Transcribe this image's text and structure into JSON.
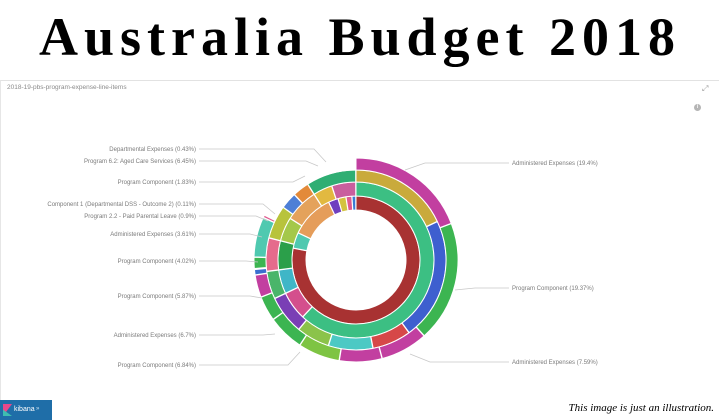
{
  "banner": {
    "title": "Australia Budget 2018"
  },
  "panel": {
    "title": "2018-19-pbs-program-expense-line-items",
    "expand_icon": "expand-icon",
    "info_icon": "info-icon"
  },
  "chart_data": {
    "type": "sunburst",
    "title": "2018-19-pbs-program-expense-line-items",
    "labels": [
      {
        "side": "left",
        "text": "Departmental Expenses (0.43%)"
      },
      {
        "side": "left",
        "text": "Program 6.2: Aged Care Services (6.45%)"
      },
      {
        "side": "left",
        "text": "Program Component (1.83%)"
      },
      {
        "side": "left",
        "text": "Component 1 (Departmental DSS - Outcome 2) (0.11%)"
      },
      {
        "side": "left",
        "text": "Program 2.2 - Paid Parental Leave (0.9%)"
      },
      {
        "side": "left",
        "text": "Administered Expenses (3.61%)"
      },
      {
        "side": "left",
        "text": "Program Component (4.02%)"
      },
      {
        "side": "left",
        "text": "Program Component (5.87%)"
      },
      {
        "side": "left",
        "text": "Administered Expenses (6.7%)"
      },
      {
        "side": "left",
        "text": "Program Component (6.84%)"
      },
      {
        "side": "right",
        "text": "Administered Expenses (19.4%)"
      },
      {
        "side": "right",
        "text": "Program Component (19.37%)"
      },
      {
        "side": "right",
        "text": "Administered Expenses (7.59%)"
      }
    ],
    "rings": [
      {
        "name": "inner",
        "segments": [
          {
            "pct": 78,
            "color": "#a83232"
          },
          {
            "pct": 4,
            "color": "#4fc9b0"
          },
          {
            "pct": 11,
            "color": "#e59d5a"
          },
          {
            "pct": 2.5,
            "color": "#6f3fbf"
          },
          {
            "pct": 2,
            "color": "#d4c23f"
          },
          {
            "pct": 1.5,
            "color": "#e05a8f"
          },
          {
            "pct": 1,
            "color": "#3a7bd5"
          }
        ]
      },
      {
        "name": "ring2",
        "segments": [
          {
            "pct": 62,
            "color": "#3cbf83"
          },
          {
            "pct": 6,
            "color": "#d44f8d"
          },
          {
            "pct": 5,
            "color": "#3fb6c7"
          },
          {
            "pct": 6,
            "color": "#2b9f4a"
          },
          {
            "pct": 5,
            "color": "#a4c84a"
          },
          {
            "pct": 7,
            "color": "#e4a25b"
          },
          {
            "pct": 4,
            "color": "#e2b940"
          },
          {
            "pct": 5,
            "color": "#c95f9e"
          }
        ]
      },
      {
        "name": "ring3",
        "segments": [
          {
            "pct": 18,
            "color": "#c9aa3c"
          },
          {
            "pct": 22,
            "color": "#3e5fcf"
          },
          {
            "pct": 7,
            "color": "#d64848"
          },
          {
            "pct": 8,
            "color": "#4cc9c4"
          },
          {
            "pct": 6,
            "color": "#8bc34a"
          },
          {
            "pct": 7,
            "color": "#7a3fb5"
          },
          {
            "pct": 5,
            "color": "#4ab56a"
          },
          {
            "pct": 6,
            "color": "#e56b8c"
          },
          {
            "pct": 6,
            "color": "#b8c33c"
          },
          {
            "pct": 3,
            "color": "#4d7fd6"
          },
          {
            "pct": 3,
            "color": "#e38a3a"
          },
          {
            "pct": 9,
            "color": "#2fae73"
          }
        ]
      },
      {
        "name": "outer",
        "segments": [
          {
            "pct": 19.4,
            "color": "#c23fa0"
          },
          {
            "pct": 19.37,
            "color": "#3cb551"
          },
          {
            "pct": 7.59,
            "color": "#c23fa0"
          },
          {
            "pct": 6.84,
            "color": "#c23fa0"
          },
          {
            "pct": 6.7,
            "color": "#7ec443"
          },
          {
            "pct": 5.87,
            "color": "#3cb551"
          },
          {
            "pct": 4.02,
            "color": "#3cb551"
          },
          {
            "pct": 3.61,
            "color": "#c23fa0"
          },
          {
            "pct": 0.9,
            "color": "#3a6fcf"
          },
          {
            "pct": 0.11,
            "color": "#d4c23f"
          },
          {
            "pct": 1.83,
            "color": "#3cb551"
          },
          {
            "pct": 6.45,
            "color": "#4fc9b0"
          },
          {
            "pct": 0.43,
            "color": "#e05a8f"
          },
          {
            "pct": 17.88,
            "color": "#ffffff"
          }
        ]
      }
    ]
  },
  "footer": {
    "logo_text": "kibana",
    "logo_extra": "»",
    "disclaimer": "This image is just an illustration."
  }
}
